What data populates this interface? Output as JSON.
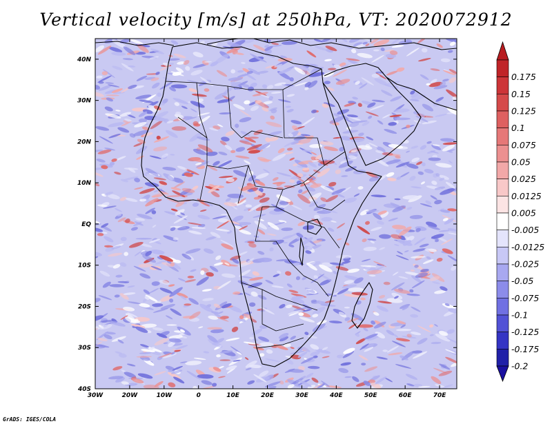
{
  "title": "Vertical velocity [m/s] at 250hPa, VT: 2020072912",
  "credit": "GrADS: IGES/COLA",
  "map": {
    "lon_range": [
      -30,
      75
    ],
    "lat_range": [
      -40,
      45
    ],
    "lon_ticks": [
      "30W",
      "20W",
      "10W",
      "0",
      "10E",
      "20E",
      "30E",
      "40E",
      "50E",
      "60E",
      "70E"
    ],
    "lat_ticks": [
      "40N",
      "30N",
      "20N",
      "10N",
      "EQ",
      "10S",
      "20S",
      "30S",
      "40S"
    ],
    "field": "Vertical velocity",
    "units": "m/s"
  },
  "colorbar": {
    "labels": [
      "0.175",
      "0.15",
      "0.125",
      "0.1",
      "0.075",
      "0.05",
      "0.025",
      "0.0125",
      "0.005",
      "-0.005",
      "-0.0125",
      "-0.025",
      "-0.05",
      "-0.075",
      "-0.1",
      "-0.125",
      "-0.175",
      "-0.2"
    ],
    "colors": [
      "#c02428",
      "#cd3538",
      "#d54a4a",
      "#de6060",
      "#e67878",
      "#ec9090",
      "#f2a8a8",
      "#f8c8c8",
      "#fce4e4",
      "#ffffff",
      "#e4e4fc",
      "#c8c8f6",
      "#a8a8f0",
      "#8c8cea",
      "#7070e2",
      "#5252d6",
      "#3434c4",
      "#2020a8"
    ],
    "arrow_top_color": "#b81c20",
    "arrow_bottom_color": "#1a10a0"
  }
}
